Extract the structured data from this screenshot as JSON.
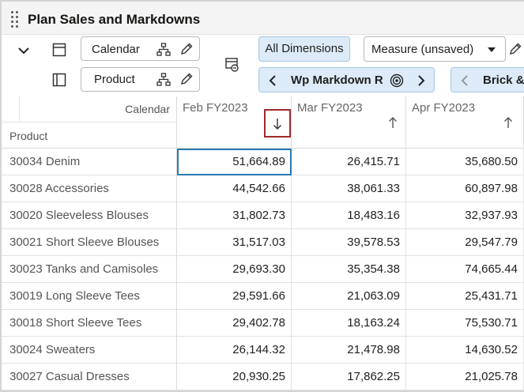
{
  "window": {
    "title": "Plan Sales and Markdowns"
  },
  "toolbar": {
    "calendar_label": "Calendar",
    "product_label": "Product",
    "all_dimensions_label": "All Dimensions",
    "measure_label": "Measure (unsaved)",
    "pager_label": "Wp Markdown R",
    "pager2_label": "Brick & M"
  },
  "grid": {
    "corner_column_label": "Calendar",
    "corner_row_label": "Product",
    "columns": [
      {
        "label": "Feb FY2023",
        "sort": "descending"
      },
      {
        "label": "Mar FY2023",
        "sort": "ascending"
      },
      {
        "label": "Apr FY2023",
        "sort": "ascending"
      }
    ],
    "rows": [
      {
        "product": "30034 Denim",
        "values": [
          "51,664.89",
          "26,415.71",
          "35,680.50"
        ]
      },
      {
        "product": "30028 Accessories",
        "values": [
          "44,542.66",
          "38,061.33",
          "60,897.98"
        ]
      },
      {
        "product": "30020 Sleeveless Blouses",
        "values": [
          "31,802.73",
          "18,483.16",
          "32,937.93"
        ]
      },
      {
        "product": "30021 Short Sleeve Blouses",
        "values": [
          "31,517.03",
          "39,578.53",
          "29,547.79"
        ]
      },
      {
        "product": "30023 Tanks and Camisoles",
        "values": [
          "29,693.30",
          "35,354.38",
          "74,665.44"
        ]
      },
      {
        "product": "30019 Long Sleeve Tees",
        "values": [
          "29,591.66",
          "21,063.09",
          "25,431.71"
        ]
      },
      {
        "product": "30018 Short Sleeve Tees",
        "values": [
          "29,402.78",
          "18,163.24",
          "75,530.71"
        ]
      },
      {
        "product": "30024 Sweaters",
        "values": [
          "26,144.32",
          "21,478.98",
          "14,630.52"
        ]
      },
      {
        "product": "30027 Casual Dresses",
        "values": [
          "20,930.25",
          "17,862.25",
          "21,025.78"
        ]
      }
    ]
  },
  "colors": {
    "accent_blue": "#2a7ab0",
    "sort_highlight": "#a02a2a",
    "button_bg": "#dcebf7"
  }
}
